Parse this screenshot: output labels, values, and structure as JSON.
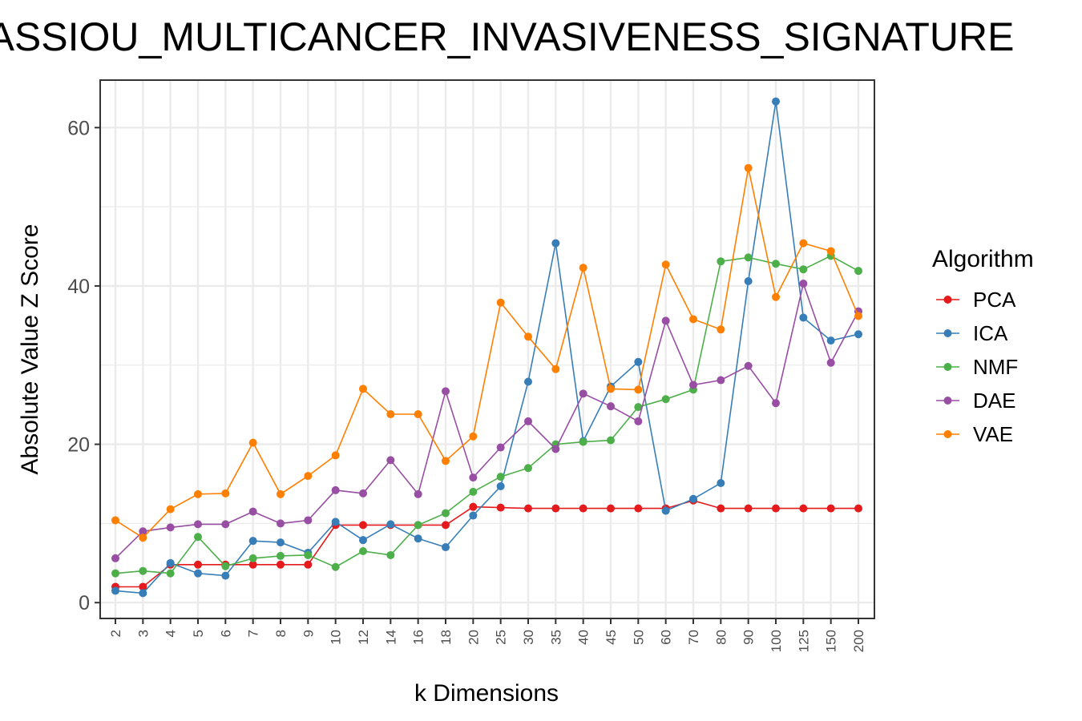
{
  "chart_data": {
    "type": "line",
    "title": "ASSIOU_MULTICANCER_INVASIVENESS_SIGNATURE",
    "xlabel": "k Dimensions",
    "ylabel": "Absolute Value Z Score",
    "categories": [
      "2",
      "3",
      "4",
      "5",
      "6",
      "7",
      "8",
      "9",
      "10",
      "12",
      "14",
      "16",
      "18",
      "20",
      "25",
      "30",
      "35",
      "40",
      "45",
      "50",
      "60",
      "70",
      "80",
      "90",
      "100",
      "125",
      "150",
      "200"
    ],
    "ylim": [
      -2,
      66
    ],
    "yticks": [
      0,
      20,
      40,
      60
    ],
    "grid": true,
    "legend_title": "Algorithm",
    "legend_position": "right",
    "series": [
      {
        "name": "PCA",
        "color": "#e41a1c",
        "values": [
          2.0,
          2.0,
          4.8,
          4.8,
          4.8,
          4.8,
          4.8,
          4.8,
          9.8,
          9.8,
          9.8,
          9.8,
          9.8,
          12.1,
          12.0,
          11.9,
          11.9,
          11.9,
          11.9,
          11.9,
          11.9,
          12.9,
          11.9,
          11.9,
          11.9,
          11.9,
          11.9,
          11.9
        ]
      },
      {
        "name": "ICA",
        "color": "#377eb8",
        "values": [
          1.5,
          1.2,
          5.0,
          3.7,
          3.4,
          7.8,
          7.6,
          6.3,
          10.2,
          7.9,
          9.9,
          8.1,
          7.0,
          11.0,
          14.7,
          27.9,
          45.4,
          20.4,
          27.3,
          30.4,
          11.6,
          13.1,
          15.1,
          40.6,
          63.3,
          36.0,
          33.1,
          33.9
        ]
      },
      {
        "name": "NMF",
        "color": "#4daf4a",
        "values": [
          3.7,
          4.0,
          3.7,
          8.3,
          4.6,
          5.6,
          5.9,
          6.0,
          4.5,
          6.5,
          6.0,
          9.8,
          11.3,
          14.0,
          15.9,
          17.0,
          20.0,
          20.3,
          20.5,
          24.7,
          25.7,
          26.9,
          43.1,
          43.6,
          42.8,
          42.1,
          43.8,
          41.9
        ]
      },
      {
        "name": "DAE",
        "color": "#984ea3",
        "values": [
          5.6,
          9.0,
          9.5,
          9.9,
          9.9,
          11.5,
          10.0,
          10.4,
          14.2,
          13.8,
          18.0,
          13.7,
          26.7,
          15.8,
          19.6,
          22.9,
          19.4,
          26.4,
          24.8,
          22.9,
          35.6,
          27.5,
          28.1,
          29.9,
          25.2,
          40.3,
          30.3,
          36.8
        ]
      },
      {
        "name": "VAE",
        "color": "#ff7f00",
        "values": [
          10.4,
          8.2,
          11.8,
          13.7,
          13.8,
          20.2,
          13.7,
          16.0,
          18.6,
          27.0,
          23.8,
          23.8,
          17.9,
          21.0,
          37.9,
          33.6,
          29.5,
          42.3,
          27.0,
          26.9,
          42.7,
          35.8,
          34.5,
          54.9,
          38.6,
          45.4,
          44.4,
          36.2
        ]
      }
    ]
  }
}
